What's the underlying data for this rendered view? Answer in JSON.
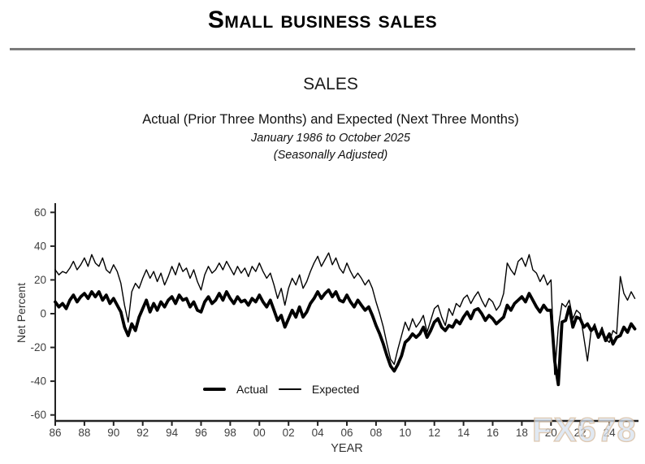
{
  "page": {
    "title": "Small Business Sales",
    "watermark": "FX678"
  },
  "chart": {
    "heading": "SALES",
    "subtitle": "Actual (Prior Three Months) and Expected (Next Three Months)",
    "date_range": "January 1986 to October 2025",
    "adjustment_note": "(Seasonally Adjusted)",
    "xlabel": "YEAR",
    "ylabel": "Net Percent"
  },
  "colors": {
    "series": "#000000",
    "axis": "#222222",
    "tick_label": "#3f3f3f",
    "divider": "#7b7b7b",
    "watermark_fill": "#ecf1f8",
    "watermark_stroke": "#d5b28c"
  },
  "chart_data": {
    "type": "line",
    "title": "SALES",
    "subtitle": "Actual (Prior Three Months) and Expected (Next Three Months), January 1986 to October 2025, Seasonally Adjusted",
    "xlabel": "YEAR",
    "ylabel": "Net Percent",
    "xlim": [
      1986.0,
      2025.92
    ],
    "ylim": [
      -60,
      60
    ],
    "grid": false,
    "legend_position": "bottom-center-inside",
    "y_ticks": [
      60,
      40,
      20,
      0,
      -20,
      -40,
      -60
    ],
    "x_tick_years": [
      1986,
      1988,
      1990,
      1992,
      1994,
      1996,
      1998,
      2000,
      2002,
      2004,
      2006,
      2008,
      2010,
      2012,
      2014,
      2016,
      2018,
      2020,
      2022,
      2024
    ],
    "x_tick_labels": [
      "86",
      "88",
      "90",
      "92",
      "94",
      "96",
      "98",
      "00",
      "02",
      "04",
      "06",
      "08",
      "10",
      "12",
      "14",
      "16",
      "18",
      "20",
      "22",
      "24"
    ],
    "x_start_year": 1986.0,
    "x_step_years": 0.25,
    "legend": [
      {
        "name": "Actual",
        "stroke_width": 3.8
      },
      {
        "name": "Expected",
        "stroke_width": 1.4
      }
    ],
    "series": [
      {
        "name": "Actual",
        "values": [
          7,
          4,
          6,
          3,
          8,
          11,
          7,
          10,
          12,
          9,
          13,
          10,
          13,
          8,
          11,
          6,
          9,
          5,
          1,
          -8,
          -13,
          -6,
          -10,
          -2,
          3,
          8,
          1,
          6,
          2,
          7,
          4,
          8,
          10,
          6,
          11,
          8,
          9,
          4,
          7,
          2,
          1,
          7,
          10,
          6,
          8,
          12,
          8,
          13,
          9,
          6,
          10,
          7,
          8,
          5,
          9,
          7,
          11,
          7,
          4,
          8,
          2,
          -4,
          -1,
          -8,
          -3,
          2,
          -2,
          4,
          -2,
          1,
          6,
          9,
          13,
          9,
          12,
          14,
          10,
          13,
          8,
          7,
          11,
          7,
          4,
          8,
          5,
          2,
          4,
          -1,
          -7,
          -12,
          -18,
          -25,
          -31,
          -34,
          -30,
          -25,
          -17,
          -15,
          -12,
          -14,
          -12,
          -8,
          -14,
          -10,
          -5,
          -3,
          -8,
          -10,
          -7,
          -8,
          -4,
          -6,
          -2,
          1,
          -3,
          2,
          3,
          0,
          -4,
          -1,
          -3,
          -6,
          -4,
          -2,
          5,
          2,
          6,
          8,
          10,
          7,
          12,
          8,
          4,
          1,
          5,
          2,
          2,
          -28,
          -42,
          -5,
          -4,
          4,
          -8,
          -2,
          -3,
          -8,
          -6,
          -10,
          -8,
          -14,
          -10,
          -16,
          -12,
          -18,
          -14,
          -13,
          -8,
          -11,
          -6,
          -9
        ]
      },
      {
        "name": "Expected",
        "values": [
          26,
          23,
          25,
          24,
          27,
          31,
          26,
          29,
          33,
          28,
          35,
          30,
          28,
          33,
          26,
          24,
          29,
          25,
          18,
          5,
          -5,
          13,
          18,
          15,
          21,
          26,
          21,
          25,
          19,
          24,
          17,
          22,
          28,
          23,
          30,
          25,
          27,
          21,
          26,
          19,
          14,
          23,
          28,
          24,
          26,
          30,
          26,
          31,
          27,
          23,
          28,
          24,
          27,
          22,
          28,
          25,
          30,
          25,
          21,
          24,
          17,
          9,
          15,
          5,
          15,
          21,
          17,
          23,
          15,
          19,
          25,
          30,
          34,
          28,
          32,
          36,
          29,
          33,
          27,
          24,
          30,
          25,
          21,
          24,
          21,
          17,
          20,
          15,
          7,
          0,
          -8,
          -18,
          -27,
          -30,
          -21,
          -13,
          -5,
          -10,
          -3,
          -8,
          -5,
          -1,
          -11,
          -4,
          3,
          5,
          -2,
          -7,
          3,
          -1,
          6,
          4,
          9,
          11,
          6,
          10,
          13,
          8,
          4,
          9,
          7,
          2,
          5,
          12,
          30,
          26,
          23,
          31,
          33,
          28,
          35,
          26,
          24,
          19,
          23,
          17,
          20,
          -36,
          -8,
          6,
          4,
          8,
          -3,
          2,
          0,
          -14,
          -28,
          -10,
          -6,
          -13,
          -8,
          -15,
          -17,
          -10,
          -12,
          22,
          12,
          8,
          13,
          9
        ]
      }
    ]
  }
}
